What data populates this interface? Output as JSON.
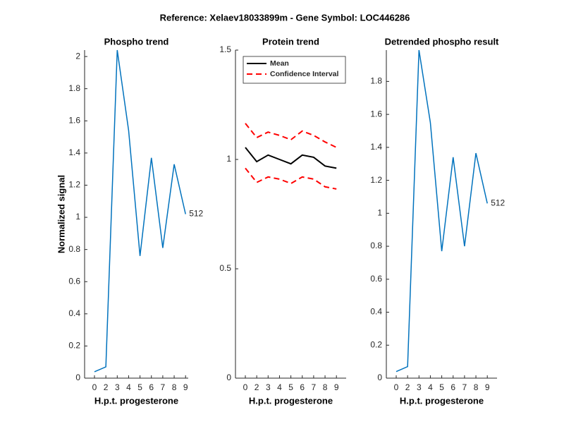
{
  "title": "Reference:  Xelaev18033899m - Gene Symbol:  LOC446286",
  "chart_data": [
    {
      "type": "line",
      "title": "Phospho trend",
      "xlabel": "H.p.t. progesterone",
      "ylabel": "Normalized signal",
      "categories": [
        "0",
        "2",
        "3",
        "4",
        "5",
        "6",
        "7",
        "8",
        "9"
      ],
      "series": [
        {
          "name": null,
          "color": "#0072bd",
          "values": [
            0.04,
            0.07,
            2.04,
            1.54,
            0.76,
            1.37,
            0.81,
            1.33,
            1.02
          ]
        }
      ],
      "annotation": "512",
      "ylim": [
        0,
        2.04
      ],
      "yticks": [
        0,
        0.2,
        0.4,
        0.6,
        0.8,
        1,
        1.2,
        1.4,
        1.6,
        1.8,
        2
      ]
    },
    {
      "type": "band-line",
      "title": "Protein trend",
      "xlabel": "H.p.t. progesterone",
      "categories": [
        "0",
        "2",
        "3",
        "4",
        "5",
        "6",
        "7",
        "8",
        "9"
      ],
      "series": [
        {
          "name": "Mean",
          "color": "#000000",
          "dashed": false,
          "values": [
            1.055,
            0.99,
            1.02,
            1.0,
            0.98,
            1.02,
            1.01,
            0.97,
            0.96
          ]
        },
        {
          "name": "Confidence Interval",
          "color": "#ff0000",
          "dashed": true,
          "values": [
            1.165,
            1.1,
            1.125,
            1.11,
            1.09,
            1.13,
            1.11,
            1.08,
            1.055
          ],
          "lower": [
            0.96,
            0.895,
            0.92,
            0.91,
            0.89,
            0.92,
            0.91,
            0.875,
            0.865
          ]
        }
      ],
      "legend": "northwest",
      "ylim": [
        0,
        1.5
      ],
      "yticks": [
        0,
        0.5,
        1,
        1.5
      ]
    },
    {
      "type": "line",
      "title": "Detrended phospho result",
      "xlabel": "H.p.t. progesterone",
      "categories": [
        "0",
        "2",
        "3",
        "4",
        "5",
        "6",
        "7",
        "8",
        "9"
      ],
      "series": [
        {
          "name": null,
          "color": "#0072bd",
          "values": [
            0.04,
            0.07,
            1.99,
            1.55,
            0.77,
            1.34,
            0.8,
            1.365,
            1.06
          ]
        }
      ],
      "annotation": "512",
      "ylim": [
        0,
        1.99
      ],
      "yticks": [
        0,
        0.2,
        0.4,
        0.6,
        0.8,
        1,
        1.2,
        1.4,
        1.6,
        1.8
      ]
    }
  ]
}
